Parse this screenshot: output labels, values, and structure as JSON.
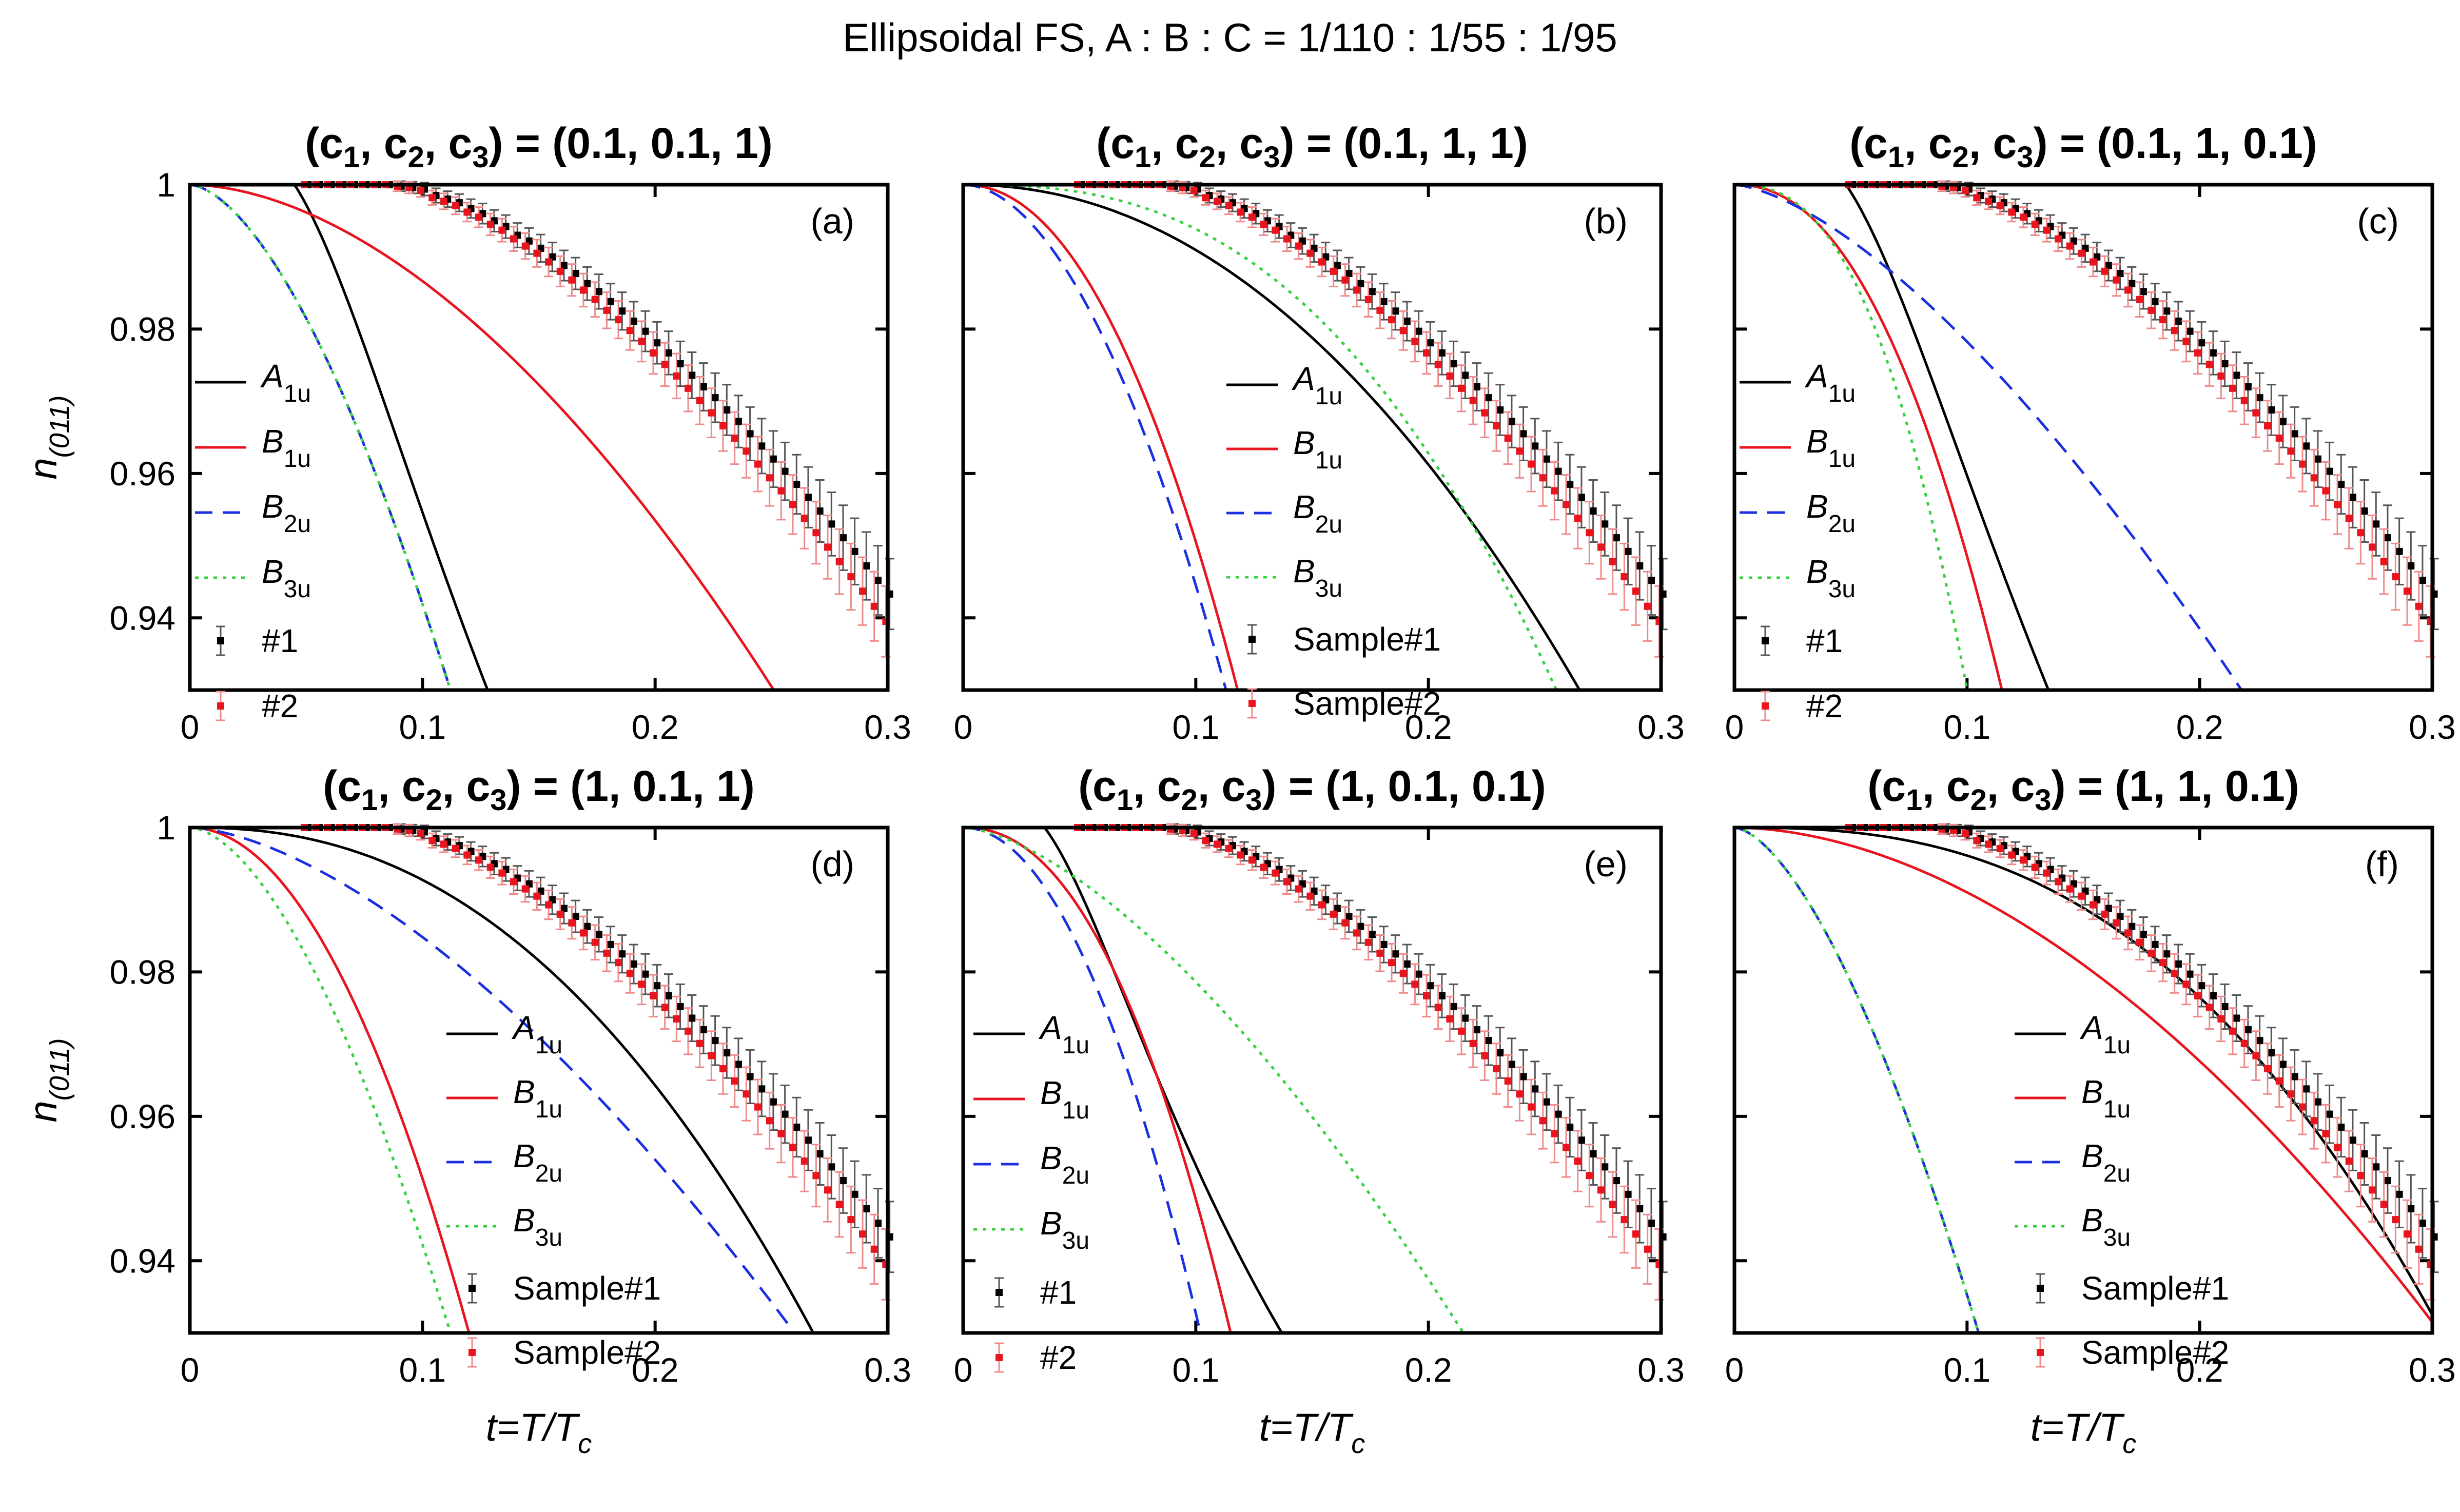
{
  "figure_title": "Ellipsoidal FS, A : B : C = 1/110 : 1/55 : 1/95",
  "colors": {
    "A1u": "#000000",
    "B1u": "#e8141e",
    "B2u": "#1a2fe0",
    "B3u": "#35d13e",
    "sample1": "#000000",
    "sample2": "#e8141e",
    "errbar1": "#555555",
    "errbar2": "#f08a8a"
  },
  "axis_text": {
    "xlabel_main": "t=T/T",
    "xlabel_sub": "c",
    "ylabel_main": "n",
    "ylabel_sub": "(011)"
  },
  "chart_data": {
    "type": "line",
    "xlim": [
      0,
      0.3
    ],
    "ylim": [
      0.93,
      1.0
    ],
    "xticks": [
      0,
      0.1,
      0.2,
      0.3
    ],
    "xtick_labels": [
      "0",
      "0.1",
      "0.2",
      "0.3"
    ],
    "yticks": [
      0.94,
      0.96,
      0.98,
      1.0
    ],
    "ytick_labels": [
      "0.94",
      "0.96",
      "0.98",
      "1"
    ],
    "samples": {
      "t": [
        0.05,
        0.055,
        0.06,
        0.065,
        0.07,
        0.075,
        0.08,
        0.085,
        0.09,
        0.095,
        0.1,
        0.105,
        0.11,
        0.115,
        0.12,
        0.125,
        0.13,
        0.135,
        0.14,
        0.145,
        0.15,
        0.155,
        0.16,
        0.165,
        0.17,
        0.175,
        0.18,
        0.185,
        0.19,
        0.195,
        0.2,
        0.205,
        0.21,
        0.215,
        0.22,
        0.225,
        0.23,
        0.235,
        0.24,
        0.245,
        0.25,
        0.255,
        0.26,
        0.265,
        0.27,
        0.275,
        0.28,
        0.285,
        0.29,
        0.295,
        0.3
      ],
      "sample1": [
        1.0,
        1.0,
        1.0,
        1.0,
        1.0,
        1.0,
        1.0,
        1.0,
        0.9998,
        0.9996,
        0.9994,
        0.9985,
        0.998,
        0.9975,
        0.9967,
        0.996,
        0.995,
        0.9942,
        0.993,
        0.9922,
        0.9912,
        0.99,
        0.9888,
        0.9877,
        0.9863,
        0.9852,
        0.9838,
        0.9825,
        0.9811,
        0.9797,
        0.9781,
        0.9767,
        0.9752,
        0.9736,
        0.972,
        0.9705,
        0.9688,
        0.9672,
        0.9655,
        0.9638,
        0.962,
        0.9603,
        0.9585,
        0.9567,
        0.9548,
        0.953,
        0.9511,
        0.9492,
        0.9472,
        0.9452,
        0.9433
      ],
      "sample2": [
        1.0,
        1.0,
        1.0,
        1.0,
        1.0,
        1.0,
        1.0,
        1.0,
        0.9998,
        0.9996,
        0.9992,
        0.9982,
        0.9977,
        0.9971,
        0.9962,
        0.9955,
        0.9945,
        0.9937,
        0.9925,
        0.9915,
        0.9905,
        0.9893,
        0.988,
        0.9868,
        0.9854,
        0.9841,
        0.9826,
        0.9813,
        0.9798,
        0.9783,
        0.9767,
        0.9751,
        0.9735,
        0.9718,
        0.9701,
        0.9684,
        0.9666,
        0.9649,
        0.9631,
        0.9613,
        0.9594,
        0.9576,
        0.9557,
        0.9538,
        0.9518,
        0.9498,
        0.9478,
        0.9457,
        0.9437,
        0.9416,
        0.9395
      ],
      "error": [
        0.0002,
        0.0002,
        0.0002,
        0.0003,
        0.0003,
        0.0004,
        0.0005,
        0.0006,
        0.0007,
        0.0008,
        0.0009,
        0.001,
        0.0011,
        0.0012,
        0.0013,
        0.0014,
        0.0015,
        0.0016,
        0.0017,
        0.0018,
        0.0019,
        0.002,
        0.0021,
        0.0022,
        0.0023,
        0.0024,
        0.0025,
        0.0026,
        0.0027,
        0.0028,
        0.0029,
        0.003,
        0.0031,
        0.0032,
        0.0033,
        0.0034,
        0.0035,
        0.0036,
        0.0037,
        0.0038,
        0.0039,
        0.004,
        0.0041,
        0.0042,
        0.0043,
        0.0044,
        0.0045,
        0.0046,
        0.0047,
        0.0048,
        0.0049
      ]
    },
    "panels": [
      {
        "label": "(a)",
        "title_prefix": "(c",
        "title_mid1": ", c",
        "title_mid2": ", c",
        "title_suffix": ") = (0.1, 0.1, 1)",
        "legend_samples": [
          "#1",
          "#2"
        ],
        "series": [
          {
            "name": "A",
            "sub": "1u",
            "style": "solid",
            "color_key": "A1u",
            "curve": {
              "type": "gap",
              "t0": 0.045,
              "t_end": 0.128,
              "y_end": 0.93
            }
          },
          {
            "name": "B",
            "sub": "1u",
            "style": "solid",
            "color_key": "B1u",
            "curve": {
              "type": "power",
              "p": 1.8,
              "t_end": 0.251,
              "y_end": 0.93
            }
          },
          {
            "name": "B",
            "sub": "2u",
            "style": "dashed",
            "color_key": "B2u",
            "curve": {
              "type": "power",
              "p": 1.65,
              "t_end": 0.112,
              "y_end": 0.93
            }
          },
          {
            "name": "B",
            "sub": "3u",
            "style": "dotted",
            "color_key": "B3u",
            "curve": {
              "type": "power",
              "p": 1.65,
              "t_end": 0.112,
              "y_end": 0.93
            }
          }
        ]
      },
      {
        "label": "(b)",
        "title_prefix": "(c",
        "title_mid1": ", c",
        "title_mid2": ", c",
        "title_suffix": ") = (0.1, 1, 1)",
        "legend_samples": [
          "Sample#1",
          "Sample#2"
        ],
        "series": [
          {
            "name": "A",
            "sub": "1u",
            "style": "solid",
            "color_key": "A1u",
            "curve": {
              "type": "power",
              "p": 2.1,
              "t_end": 0.265,
              "y_end": 0.93
            }
          },
          {
            "name": "B",
            "sub": "1u",
            "style": "solid",
            "color_key": "B1u",
            "curve": {
              "type": "power",
              "p": 2.1,
              "t_end": 0.118,
              "y_end": 0.93
            }
          },
          {
            "name": "B",
            "sub": "2u",
            "style": "dashed",
            "color_key": "B2u",
            "curve": {
              "type": "power",
              "p": 1.9,
              "t_end": 0.113,
              "y_end": 0.93
            }
          },
          {
            "name": "B",
            "sub": "3u",
            "style": "dotted",
            "color_key": "B3u",
            "curve": {
              "type": "power",
              "p": 2.6,
              "t_end": 0.255,
              "y_end": 0.93
            }
          }
        ]
      },
      {
        "label": "(c)",
        "title_prefix": "(c",
        "title_mid1": ", c",
        "title_mid2": ", c",
        "title_suffix": ") = (0.1, 1, 0.1)",
        "legend_samples": [
          "#1",
          "#2"
        ],
        "series": [
          {
            "name": "A",
            "sub": "1u",
            "style": "solid",
            "color_key": "A1u",
            "curve": {
              "type": "gap",
              "t0": 0.048,
              "t_end": 0.135,
              "y_end": 0.93
            }
          },
          {
            "name": "B",
            "sub": "1u",
            "style": "solid",
            "color_key": "B1u",
            "curve": {
              "type": "power",
              "p": 2.2,
              "t_end": 0.115,
              "y_end": 0.93
            }
          },
          {
            "name": "B",
            "sub": "2u",
            "style": "dashed",
            "color_key": "B2u",
            "curve": {
              "type": "power",
              "p": 1.5,
              "t_end": 0.218,
              "y_end": 0.93
            }
          },
          {
            "name": "B",
            "sub": "3u",
            "style": "dotted",
            "color_key": "B3u",
            "curve": {
              "type": "power",
              "p": 2.5,
              "t_end": 0.1,
              "y_end": 0.93
            }
          }
        ]
      },
      {
        "label": "(d)",
        "title_prefix": "(c",
        "title_mid1": ", c",
        "title_mid2": ", c",
        "title_suffix": ") = (1, 0.1, 1)",
        "legend_samples": [
          "Sample#1",
          "Sample#2"
        ],
        "series": [
          {
            "name": "A",
            "sub": "1u",
            "style": "solid",
            "color_key": "A1u",
            "curve": {
              "type": "power",
              "p": 2.3,
              "t_end": 0.268,
              "y_end": 0.93
            }
          },
          {
            "name": "B",
            "sub": "1u",
            "style": "solid",
            "color_key": "B1u",
            "curve": {
              "type": "power",
              "p": 2.0,
              "t_end": 0.12,
              "y_end": 0.93
            }
          },
          {
            "name": "B",
            "sub": "2u",
            "style": "dashed",
            "color_key": "B2u",
            "curve": {
              "type": "power",
              "p": 1.6,
              "t_end": 0.26,
              "y_end": 0.93
            }
          },
          {
            "name": "B",
            "sub": "3u",
            "style": "dotted",
            "color_key": "B3u",
            "curve": {
              "type": "power",
              "p": 1.7,
              "t_end": 0.112,
              "y_end": 0.93
            }
          }
        ]
      },
      {
        "label": "(e)",
        "title_prefix": "(c",
        "title_mid1": ", c",
        "title_mid2": ", c",
        "title_suffix": ") = (1, 0.1, 0.1)",
        "legend_samples": [
          "#1",
          "#2"
        ],
        "series": [
          {
            "name": "A",
            "sub": "1u",
            "style": "solid",
            "color_key": "A1u",
            "curve": {
              "type": "gap",
              "t0": 0.035,
              "t_end": 0.137,
              "y_end": 0.93
            }
          },
          {
            "name": "B",
            "sub": "1u",
            "style": "solid",
            "color_key": "B1u",
            "curve": {
              "type": "power",
              "p": 2.2,
              "t_end": 0.115,
              "y_end": 0.93
            }
          },
          {
            "name": "B",
            "sub": "2u",
            "style": "dashed",
            "color_key": "B2u",
            "curve": {
              "type": "power",
              "p": 2.0,
              "t_end": 0.102,
              "y_end": 0.93
            }
          },
          {
            "name": "B",
            "sub": "3u",
            "style": "dotted",
            "color_key": "B3u",
            "curve": {
              "type": "power",
              "p": 1.55,
              "t_end": 0.215,
              "y_end": 0.93
            }
          }
        ]
      },
      {
        "label": "(f)",
        "title_prefix": "(c",
        "title_mid1": ", c",
        "title_mid2": ", c",
        "title_suffix": ") = (1, 1, 0.1)",
        "legend_samples": [
          "Sample#1",
          "Sample#2"
        ],
        "series": [
          {
            "name": "A",
            "sub": "1u",
            "style": "solid",
            "color_key": "A1u",
            "curve": {
              "type": "power",
              "p": 2.6,
              "t_end": 0.3,
              "y_end": 0.9325
            }
          },
          {
            "name": "B",
            "sub": "1u",
            "style": "solid",
            "color_key": "B1u",
            "curve": {
              "type": "power",
              "p": 1.85,
              "t_end": 0.3,
              "y_end": 0.9315
            }
          },
          {
            "name": "B",
            "sub": "2u",
            "style": "dashed",
            "color_key": "B2u",
            "curve": {
              "type": "power",
              "p": 1.6,
              "t_end": 0.105,
              "y_end": 0.93
            }
          },
          {
            "name": "B",
            "sub": "3u",
            "style": "dotted",
            "color_key": "B3u",
            "curve": {
              "type": "power",
              "p": 1.6,
              "t_end": 0.105,
              "y_end": 0.93
            }
          }
        ]
      }
    ]
  }
}
